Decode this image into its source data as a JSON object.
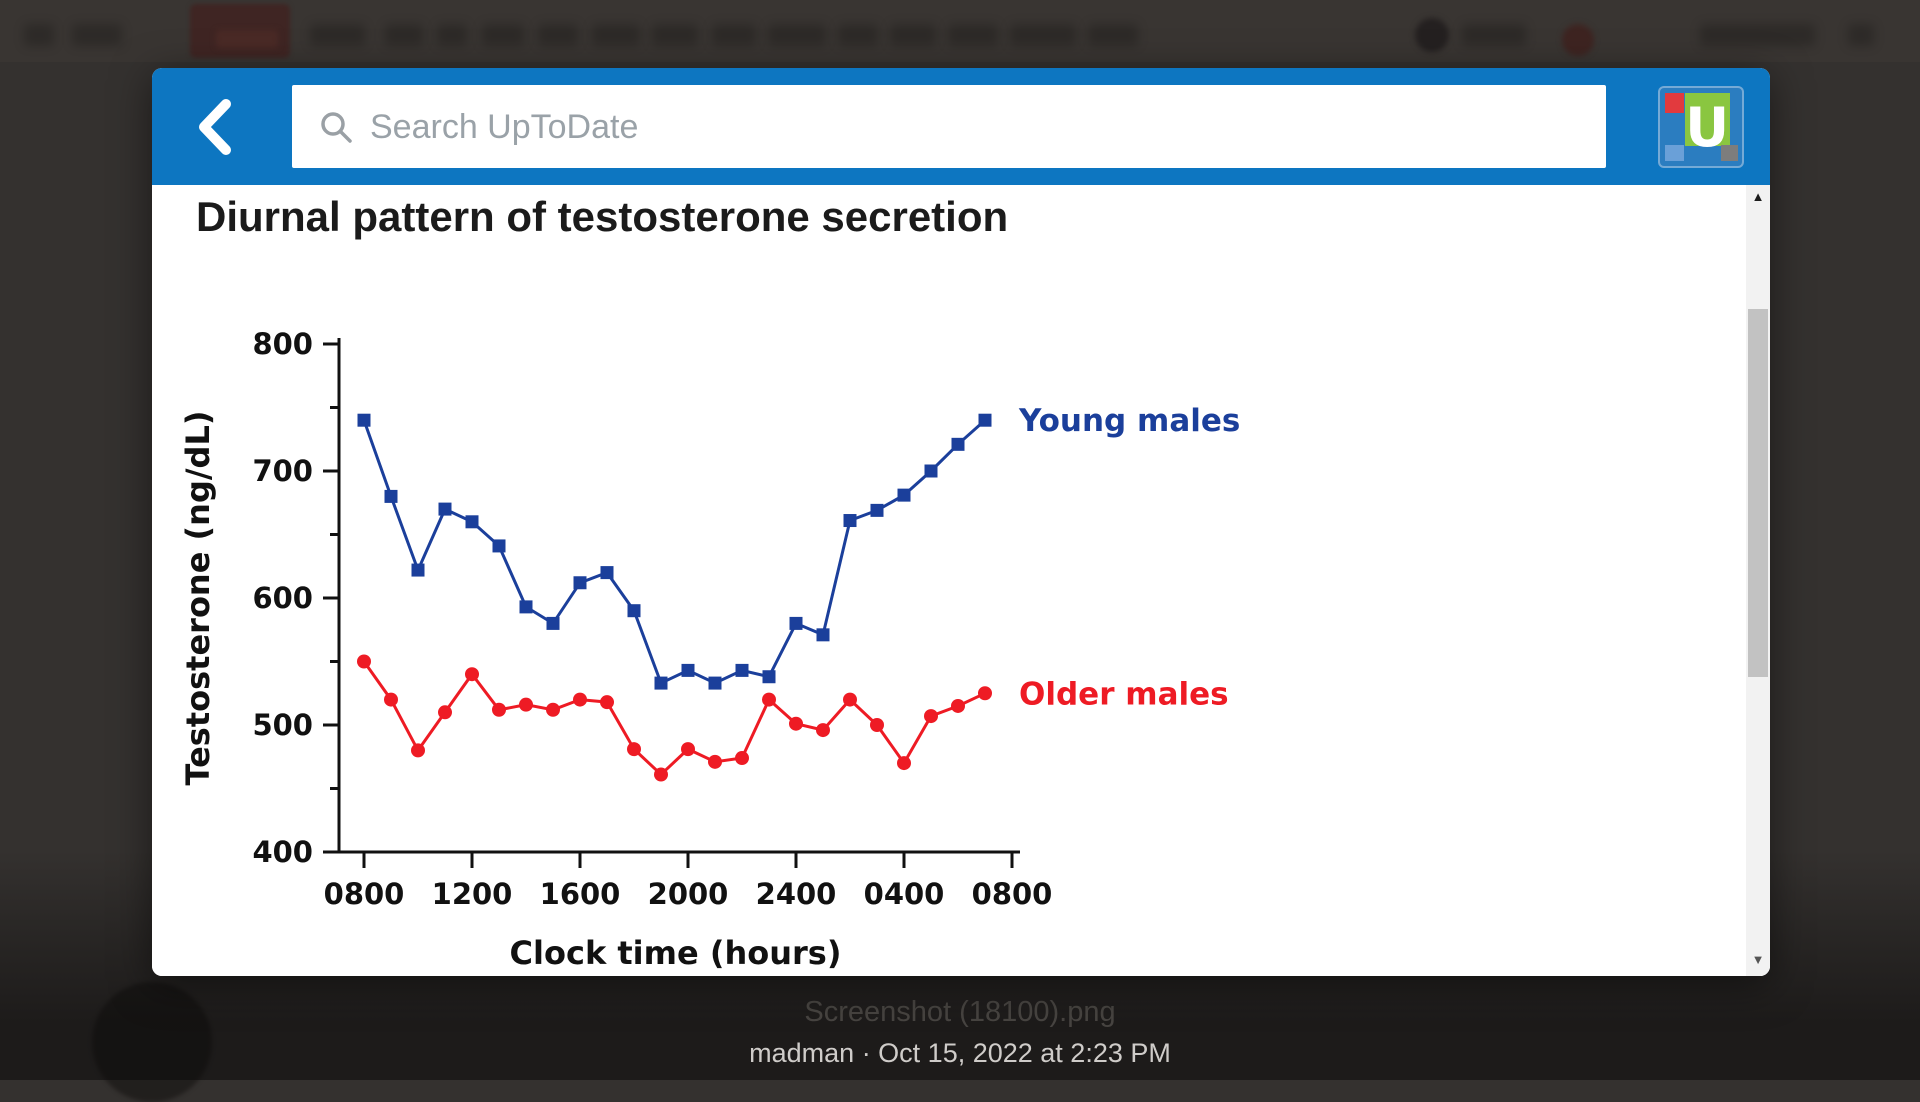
{
  "viewer": {
    "filename": "Screenshot (18100).png",
    "caption": "madman · Oct 15, 2022 at 2:23 PM"
  },
  "modal": {
    "search": {
      "placeholder": "Search UpToDate"
    },
    "logo_letter": "U",
    "page_title": "Diurnal pattern of testosterone secretion"
  },
  "colors": {
    "header_blue": "#0d76c1",
    "young_males_blue": "#1b3f9b",
    "older_males_red": "#ee1b24",
    "axis_black": "#111111"
  },
  "chart_data": {
    "type": "line",
    "title": "Diurnal pattern of testosterone secretion",
    "xlabel": "Clock time (hours)",
    "ylabel": "Testosterone (ng/dL)",
    "x_hours": [
      "0800",
      "0900",
      "1000",
      "1100",
      "1200",
      "1300",
      "1400",
      "1500",
      "1600",
      "1700",
      "1800",
      "1900",
      "2000",
      "2100",
      "2200",
      "2300",
      "2400",
      "0100",
      "0200",
      "0300",
      "0400",
      "0500",
      "0600",
      "0700"
    ],
    "x_tick_labels": [
      "0800",
      "1200",
      "1600",
      "2000",
      "2400",
      "0400",
      "0800"
    ],
    "y_ticks": [
      400,
      500,
      600,
      700,
      800
    ],
    "y_minor_ticks": [
      450,
      550,
      650,
      750
    ],
    "ylim": [
      400,
      800
    ],
    "grid": false,
    "legend_position": "right-of-line-ends",
    "series": [
      {
        "name": "Young males",
        "color": "#1b3f9b",
        "marker": "square",
        "values": [
          740,
          680,
          622,
          670,
          660,
          641,
          593,
          580,
          612,
          620,
          590,
          533,
          543,
          533,
          543,
          538,
          580,
          571,
          661,
          669,
          681,
          700,
          721,
          740
        ]
      },
      {
        "name": "Older males",
        "color": "#ee1b24",
        "marker": "circle",
        "values": [
          550,
          520,
          480,
          510,
          540,
          512,
          516,
          512,
          520,
          518,
          481,
          461,
          481,
          471,
          474,
          520,
          501,
          496,
          520,
          500,
          470,
          507,
          515,
          525
        ]
      }
    ]
  }
}
